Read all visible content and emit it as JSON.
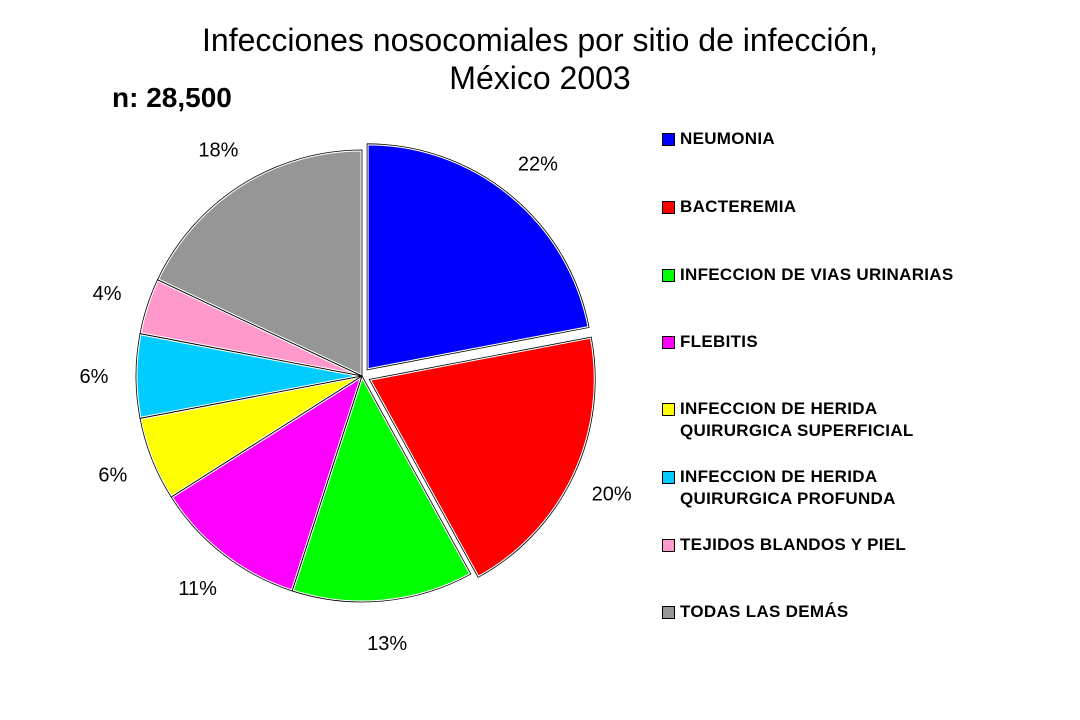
{
  "chart_data": {
    "type": "pie",
    "title": "Infecciones nosocomiales por sitio de infección,",
    "subtitle": "México 2003",
    "annotation": "n: 28,500",
    "slices": [
      {
        "label": "NEUMONIA",
        "value": 22,
        "display": "22%",
        "color": "#0000ff"
      },
      {
        "label": "BACTEREMIA",
        "value": 20,
        "display": "20%",
        "color": "#ff0000"
      },
      {
        "label": "INFECCION DE VIAS URINARIAS",
        "value": 13,
        "display": "13%",
        "color": "#00ff00"
      },
      {
        "label": "FLEBITIS",
        "value": 11,
        "display": "11%",
        "color": "#ff00ff"
      },
      {
        "label": "INFECCION DE HERIDA\nQUIRURGICA SUPERFICIAL",
        "value": 6,
        "display": "6%",
        "color": "#ffff00"
      },
      {
        "label": "INFECCION DE HERIDA\nQUIRURGICA PROFUNDA",
        "value": 6,
        "display": "6%",
        "color": "#00ccff"
      },
      {
        "label": "TEJIDOS BLANDOS Y PIEL",
        "value": 4,
        "display": "4%",
        "color": "#ff99cc"
      },
      {
        "label": "TODAS LAS DEMÁS",
        "value": 18,
        "display": "18%",
        "color": "#969696"
      }
    ],
    "exploded_slices": [
      "NEUMONIA",
      "BACTEREMIA"
    ],
    "start": "12 o'clock",
    "direction": "clockwise",
    "legend_position": "right"
  }
}
